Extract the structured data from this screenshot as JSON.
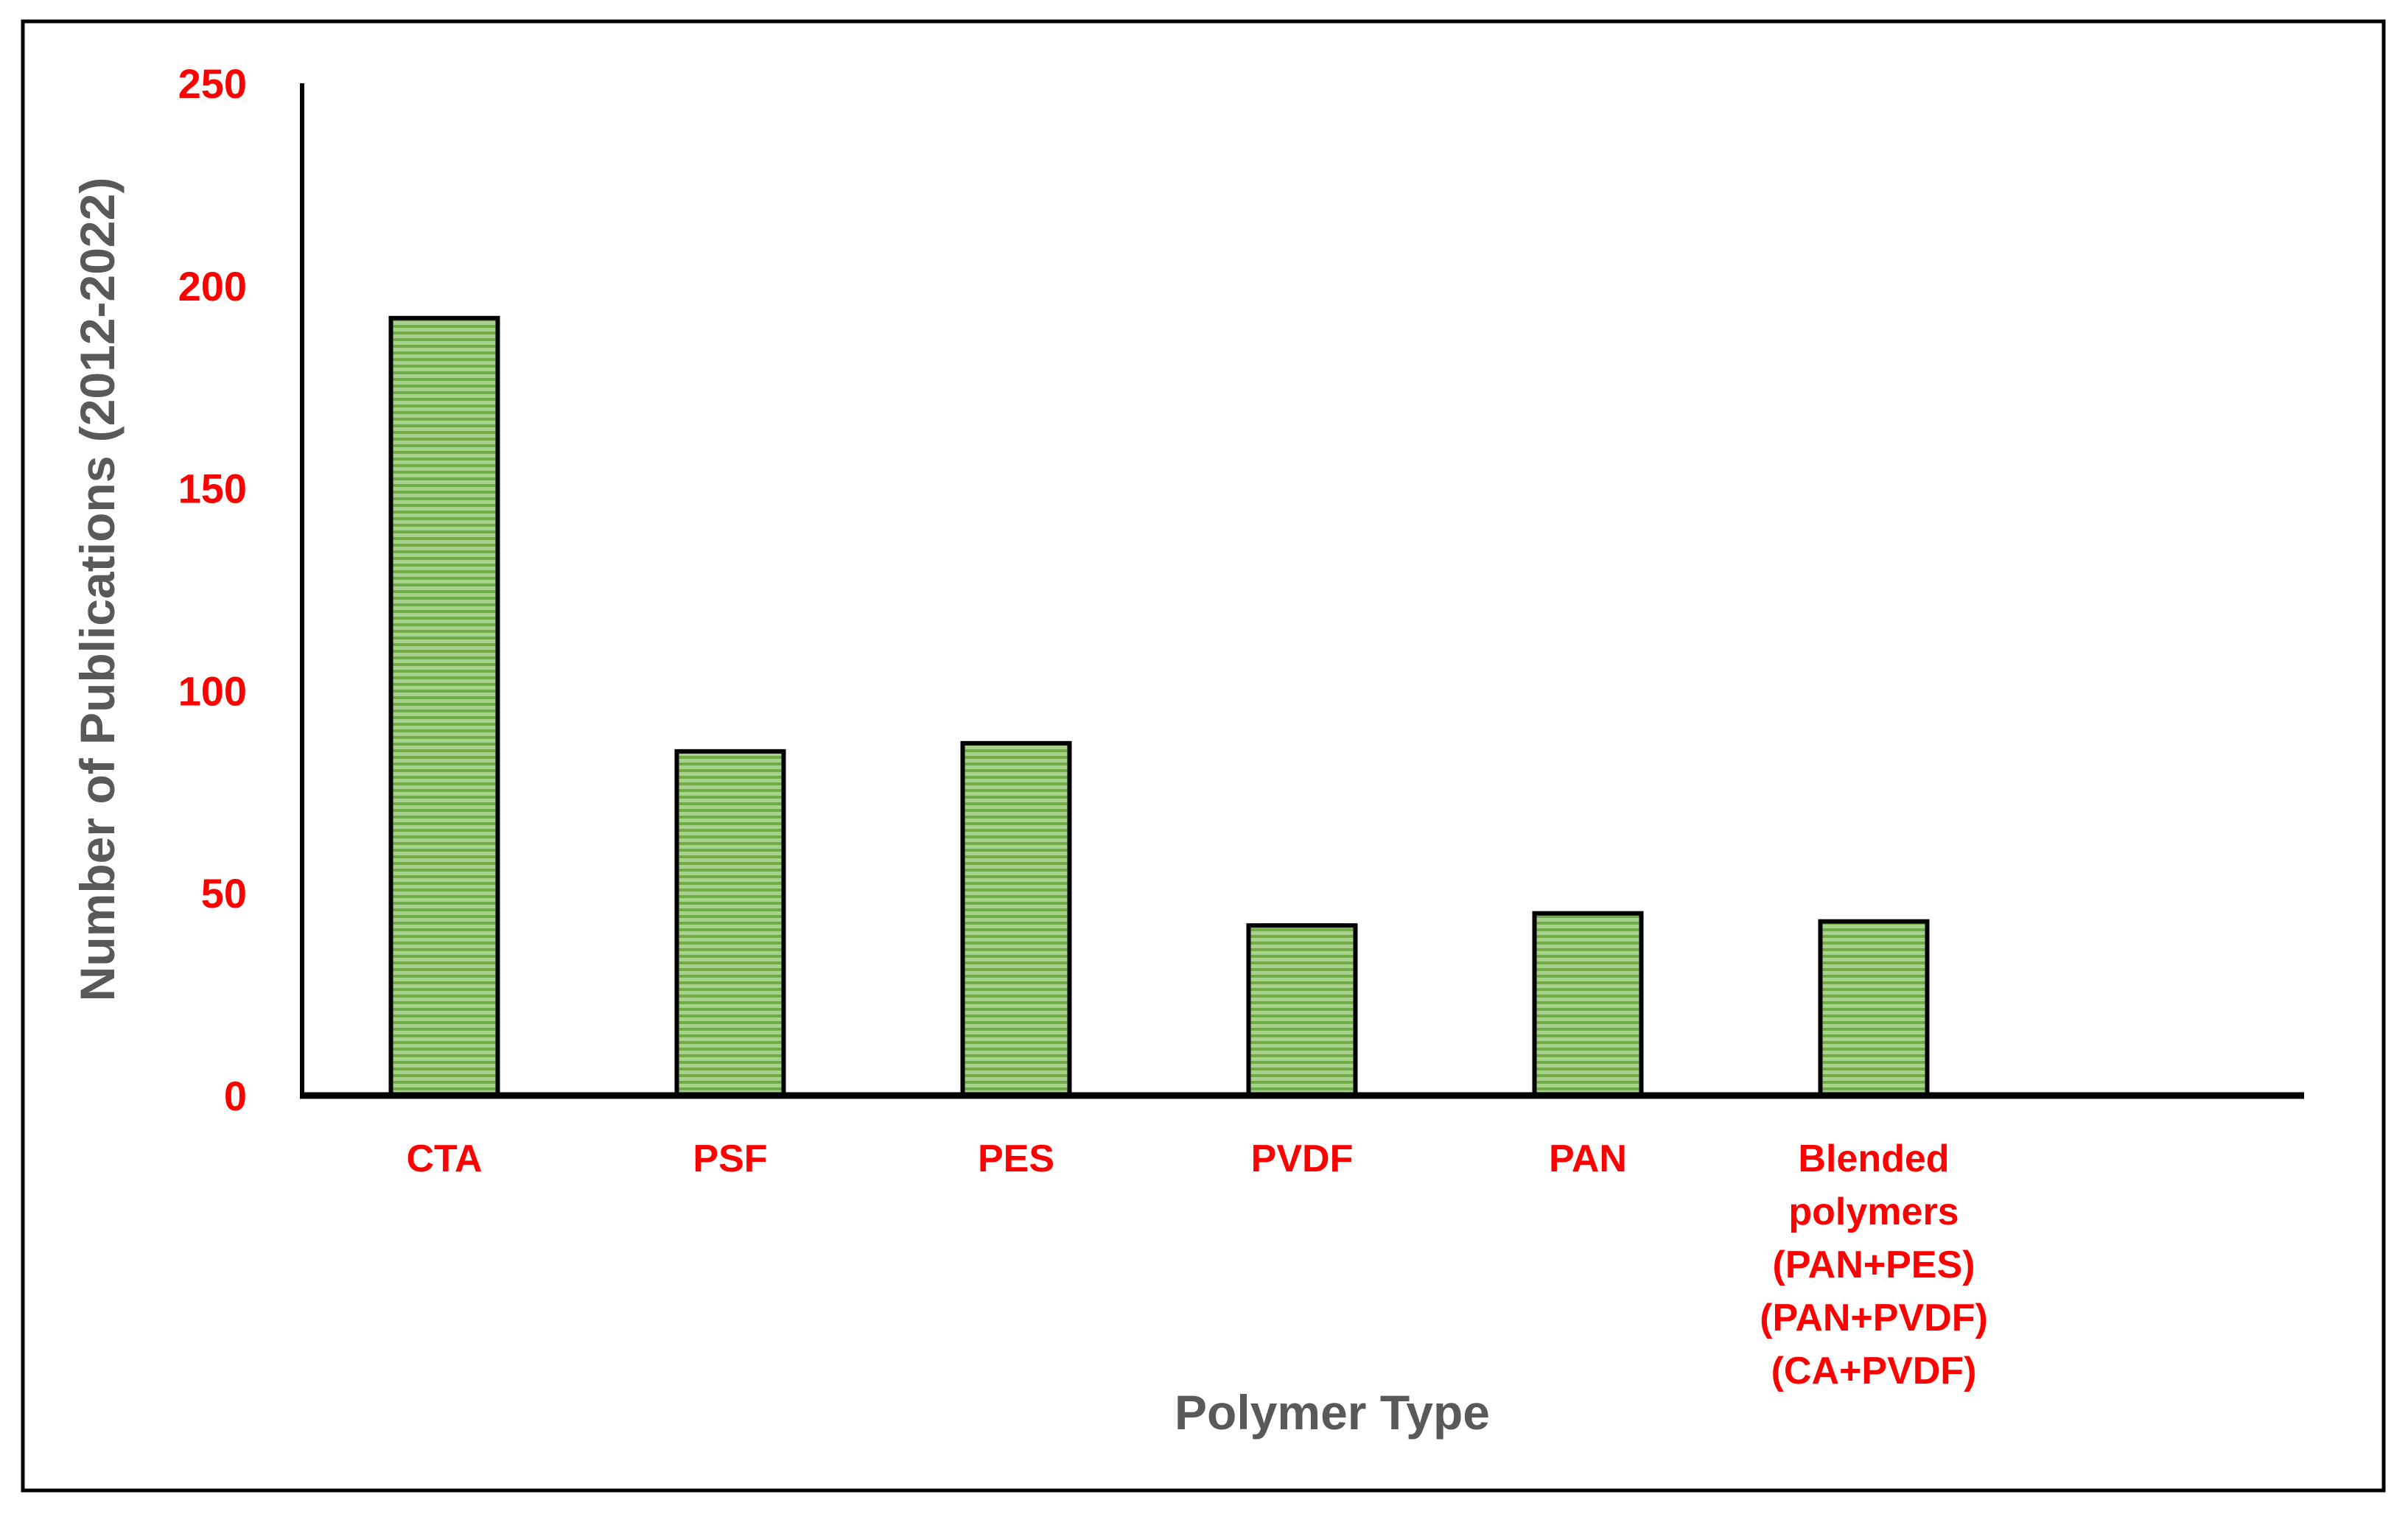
{
  "chart_data": {
    "type": "bar",
    "categories": [
      [
        "CTA"
      ],
      [
        "PSF"
      ],
      [
        "PES"
      ],
      [
        "PVDF"
      ],
      [
        "PAN"
      ],
      [
        "Blended",
        "polymers",
        "(PAN+PES)",
        "(PAN+PVDF)",
        "(CA+PVDF)"
      ]
    ],
    "values": [
      192,
      85,
      87,
      42,
      45,
      43
    ],
    "xlabel": "Polymer Type",
    "ylabel": "Number of  Publications (2012-2022)",
    "ylim": [
      0,
      250
    ],
    "yticks": [
      "0",
      "50",
      "100",
      "150",
      "200",
      "250"
    ],
    "grid": false,
    "legend": "none"
  },
  "colors": {
    "tick_labels": "#ff0000",
    "axis_titles": "#595959",
    "bar_fill": "#a9d18e",
    "bar_stripe": "#70ad47",
    "bar_outline": "#000000",
    "axis_line": "#000000",
    "frame": "#000000"
  }
}
